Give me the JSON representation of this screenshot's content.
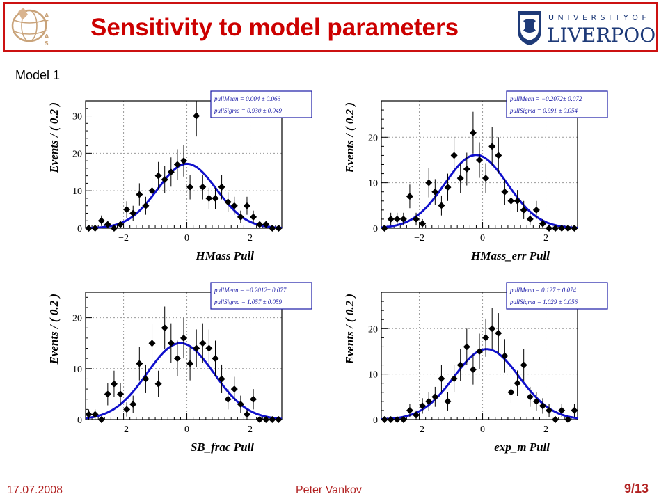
{
  "header": {
    "title": "Sensitivity to  model parameters",
    "atlas_logo_text": "ATLAS",
    "university_line1": "U N I V E R S I T Y   O F",
    "university_line2": "LIVERPOOL"
  },
  "model_label": "Model 1",
  "footer": {
    "date": "17.07.2008",
    "author": "Peter Vankov",
    "page": "9/13"
  },
  "colors": {
    "title": "#cc0000",
    "border": "#cc1111",
    "fit_curve": "#1010cc",
    "legend_text": "#1a1aa6",
    "footer": "#b22222"
  },
  "chart_data": [
    {
      "type": "scatter",
      "xlabel": "HMass Pull",
      "ylabel": "Events / ( 0.2 )",
      "xlim": [
        -3.2,
        3.0
      ],
      "ylim": [
        0,
        34
      ],
      "yticks": [
        0,
        10,
        20,
        30
      ],
      "xticks": [
        -2,
        0,
        2
      ],
      "legend": [
        "pullMean = 0.004 ± 0.066",
        "pullSigma = 0.930 ± 0.049"
      ],
      "fit": {
        "mean": 0.004,
        "sigma": 0.93,
        "amplitude": 17.2
      },
      "points": [
        {
          "x": -3.1,
          "y": 0,
          "err": 0
        },
        {
          "x": -2.9,
          "y": 0,
          "err": 0
        },
        {
          "x": -2.7,
          "y": 2,
          "err": 1.4
        },
        {
          "x": -2.5,
          "y": 1,
          "err": 1.0
        },
        {
          "x": -2.3,
          "y": 0,
          "err": 0
        },
        {
          "x": -2.1,
          "y": 1,
          "err": 1.0
        },
        {
          "x": -1.9,
          "y": 5,
          "err": 2.2
        },
        {
          "x": -1.7,
          "y": 4,
          "err": 2.0
        },
        {
          "x": -1.5,
          "y": 9,
          "err": 3.0
        },
        {
          "x": -1.3,
          "y": 6,
          "err": 2.4
        },
        {
          "x": -1.1,
          "y": 10,
          "err": 3.2
        },
        {
          "x": -0.9,
          "y": 14,
          "err": 3.7
        },
        {
          "x": -0.7,
          "y": 13,
          "err": 3.6
        },
        {
          "x": -0.5,
          "y": 15,
          "err": 3.9
        },
        {
          "x": -0.3,
          "y": 17,
          "err": 4.1
        },
        {
          "x": -0.1,
          "y": 18,
          "err": 4.2
        },
        {
          "x": 0.1,
          "y": 11,
          "err": 3.3
        },
        {
          "x": 0.3,
          "y": 30,
          "err": 5.5
        },
        {
          "x": 0.5,
          "y": 11,
          "err": 3.3
        },
        {
          "x": 0.7,
          "y": 8,
          "err": 2.8
        },
        {
          "x": 0.9,
          "y": 8,
          "err": 2.8
        },
        {
          "x": 1.1,
          "y": 11,
          "err": 3.3
        },
        {
          "x": 1.3,
          "y": 7,
          "err": 2.6
        },
        {
          "x": 1.5,
          "y": 6,
          "err": 2.4
        },
        {
          "x": 1.7,
          "y": 3,
          "err": 1.7
        },
        {
          "x": 1.9,
          "y": 6,
          "err": 2.4
        },
        {
          "x": 2.1,
          "y": 3,
          "err": 1.7
        },
        {
          "x": 2.3,
          "y": 1,
          "err": 1.0
        },
        {
          "x": 2.5,
          "y": 1,
          "err": 1.0
        },
        {
          "x": 2.7,
          "y": 0,
          "err": 0
        },
        {
          "x": 2.9,
          "y": 0,
          "err": 0
        }
      ]
    },
    {
      "type": "scatter",
      "xlabel": "HMass_err Pull",
      "ylabel": "Events / ( 0.2 )",
      "xlim": [
        -3.2,
        3.0
      ],
      "ylim": [
        0,
        28
      ],
      "yticks": [
        0,
        10,
        20
      ],
      "xticks": [
        -2,
        0,
        2
      ],
      "legend": [
        "pullMean = −0.2072± 0.072",
        "pullSigma = 0.991 ± 0.054"
      ],
      "fit": {
        "mean": -0.2072,
        "sigma": 0.991,
        "amplitude": 16.1
      },
      "points": [
        {
          "x": -3.1,
          "y": 0,
          "err": 0
        },
        {
          "x": -2.9,
          "y": 2,
          "err": 1.4
        },
        {
          "x": -2.7,
          "y": 2,
          "err": 1.4
        },
        {
          "x": -2.5,
          "y": 2,
          "err": 1.4
        },
        {
          "x": -2.3,
          "y": 7,
          "err": 2.6
        },
        {
          "x": -2.1,
          "y": 2,
          "err": 1.4
        },
        {
          "x": -1.9,
          "y": 1,
          "err": 1.0
        },
        {
          "x": -1.7,
          "y": 10,
          "err": 3.2
        },
        {
          "x": -1.5,
          "y": 8,
          "err": 2.8
        },
        {
          "x": -1.3,
          "y": 5,
          "err": 2.2
        },
        {
          "x": -1.1,
          "y": 9,
          "err": 3.0
        },
        {
          "x": -0.9,
          "y": 16,
          "err": 4.0
        },
        {
          "x": -0.7,
          "y": 11,
          "err": 3.3
        },
        {
          "x": -0.5,
          "y": 13,
          "err": 3.6
        },
        {
          "x": -0.3,
          "y": 21,
          "err": 4.6
        },
        {
          "x": -0.1,
          "y": 15,
          "err": 3.9
        },
        {
          "x": 0.1,
          "y": 11,
          "err": 3.3
        },
        {
          "x": 0.3,
          "y": 18,
          "err": 4.2
        },
        {
          "x": 0.5,
          "y": 16,
          "err": 4.0
        },
        {
          "x": 0.7,
          "y": 8,
          "err": 2.8
        },
        {
          "x": 0.9,
          "y": 6,
          "err": 2.4
        },
        {
          "x": 1.1,
          "y": 6,
          "err": 2.4
        },
        {
          "x": 1.3,
          "y": 4,
          "err": 2.0
        },
        {
          "x": 1.5,
          "y": 2,
          "err": 1.4
        },
        {
          "x": 1.7,
          "y": 4,
          "err": 2.0
        },
        {
          "x": 1.9,
          "y": 1,
          "err": 1.0
        },
        {
          "x": 2.1,
          "y": 0,
          "err": 0
        },
        {
          "x": 2.3,
          "y": 0,
          "err": 0
        },
        {
          "x": 2.5,
          "y": 0,
          "err": 0
        },
        {
          "x": 2.7,
          "y": 0,
          "err": 0
        },
        {
          "x": 2.9,
          "y": 0,
          "err": 0
        }
      ]
    },
    {
      "type": "scatter",
      "xlabel": "SB_frac Pull",
      "ylabel": "Events / ( 0.2 )",
      "xlim": [
        -3.2,
        3.0
      ],
      "ylim": [
        0,
        25
      ],
      "yticks": [
        0,
        10,
        20
      ],
      "xticks": [
        -2,
        0,
        2
      ],
      "legend": [
        "pullMean = −0.2012± 0.077",
        "pullSigma = 1.057 ± 0.059"
      ],
      "fit": {
        "mean": -0.2012,
        "sigma": 1.057,
        "amplitude": 15.0
      },
      "points": [
        {
          "x": -3.1,
          "y": 1,
          "err": 1.0
        },
        {
          "x": -2.9,
          "y": 1,
          "err": 1.0
        },
        {
          "x": -2.7,
          "y": 0,
          "err": 0
        },
        {
          "x": -2.5,
          "y": 5,
          "err": 2.2
        },
        {
          "x": -2.3,
          "y": 7,
          "err": 2.6
        },
        {
          "x": -2.1,
          "y": 5,
          "err": 2.2
        },
        {
          "x": -1.9,
          "y": 2,
          "err": 1.4
        },
        {
          "x": -1.7,
          "y": 3,
          "err": 1.7
        },
        {
          "x": -1.5,
          "y": 11,
          "err": 3.3
        },
        {
          "x": -1.3,
          "y": 8,
          "err": 2.8
        },
        {
          "x": -1.1,
          "y": 15,
          "err": 3.9
        },
        {
          "x": -0.9,
          "y": 7,
          "err": 2.6
        },
        {
          "x": -0.7,
          "y": 18,
          "err": 4.2
        },
        {
          "x": -0.5,
          "y": 15,
          "err": 3.9
        },
        {
          "x": -0.3,
          "y": 12,
          "err": 3.5
        },
        {
          "x": -0.1,
          "y": 16,
          "err": 4.0
        },
        {
          "x": 0.1,
          "y": 11,
          "err": 3.3
        },
        {
          "x": 0.3,
          "y": 14,
          "err": 3.7
        },
        {
          "x": 0.5,
          "y": 15,
          "err": 3.9
        },
        {
          "x": 0.7,
          "y": 14,
          "err": 3.7
        },
        {
          "x": 0.9,
          "y": 12,
          "err": 3.5
        },
        {
          "x": 1.1,
          "y": 8,
          "err": 2.8
        },
        {
          "x": 1.3,
          "y": 4,
          "err": 2.0
        },
        {
          "x": 1.5,
          "y": 6,
          "err": 2.4
        },
        {
          "x": 1.7,
          "y": 3,
          "err": 1.7
        },
        {
          "x": 1.9,
          "y": 1,
          "err": 1.0
        },
        {
          "x": 2.1,
          "y": 4,
          "err": 2.0
        },
        {
          "x": 2.3,
          "y": 0,
          "err": 0
        },
        {
          "x": 2.5,
          "y": 0,
          "err": 0
        },
        {
          "x": 2.7,
          "y": 0,
          "err": 0
        },
        {
          "x": 2.9,
          "y": 0,
          "err": 0
        }
      ]
    },
    {
      "type": "scatter",
      "xlabel": "exp_m Pull",
      "ylabel": "Events / ( 0.2 )",
      "xlim": [
        -3.2,
        3.0
      ],
      "ylim": [
        0,
        28
      ],
      "yticks": [
        0,
        10,
        20
      ],
      "xticks": [
        -2,
        0,
        2
      ],
      "legend": [
        "pullMean = 0.127 ± 0.074",
        "pullSigma = 1.029 ± 0.056"
      ],
      "fit": {
        "mean": 0.127,
        "sigma": 1.029,
        "amplitude": 15.5
      },
      "points": [
        {
          "x": -3.1,
          "y": 0,
          "err": 0
        },
        {
          "x": -2.9,
          "y": 0,
          "err": 0
        },
        {
          "x": -2.7,
          "y": 0,
          "err": 0
        },
        {
          "x": -2.5,
          "y": 0,
          "err": 0
        },
        {
          "x": -2.3,
          "y": 2,
          "err": 1.4
        },
        {
          "x": -2.1,
          "y": 1,
          "err": 1.0
        },
        {
          "x": -1.9,
          "y": 3,
          "err": 1.7
        },
        {
          "x": -1.7,
          "y": 4,
          "err": 2.0
        },
        {
          "x": -1.5,
          "y": 5,
          "err": 2.2
        },
        {
          "x": -1.3,
          "y": 9,
          "err": 3.0
        },
        {
          "x": -1.1,
          "y": 4,
          "err": 2.0
        },
        {
          "x": -0.9,
          "y": 9,
          "err": 3.0
        },
        {
          "x": -0.7,
          "y": 12,
          "err": 3.5
        },
        {
          "x": -0.5,
          "y": 16,
          "err": 4.0
        },
        {
          "x": -0.3,
          "y": 11,
          "err": 3.3
        },
        {
          "x": -0.1,
          "y": 15,
          "err": 3.9
        },
        {
          "x": 0.1,
          "y": 18,
          "err": 4.2
        },
        {
          "x": 0.3,
          "y": 20,
          "err": 4.5
        },
        {
          "x": 0.5,
          "y": 19,
          "err": 4.4
        },
        {
          "x": 0.7,
          "y": 14,
          "err": 3.7
        },
        {
          "x": 0.9,
          "y": 6,
          "err": 2.4
        },
        {
          "x": 1.1,
          "y": 8,
          "err": 2.8
        },
        {
          "x": 1.3,
          "y": 12,
          "err": 3.5
        },
        {
          "x": 1.5,
          "y": 5,
          "err": 2.2
        },
        {
          "x": 1.7,
          "y": 4,
          "err": 2.0
        },
        {
          "x": 1.9,
          "y": 3,
          "err": 1.7
        },
        {
          "x": 2.1,
          "y": 2,
          "err": 1.4
        },
        {
          "x": 2.3,
          "y": 0,
          "err": 0
        },
        {
          "x": 2.5,
          "y": 2,
          "err": 1.4
        },
        {
          "x": 2.7,
          "y": 0,
          "err": 0
        },
        {
          "x": 2.9,
          "y": 2,
          "err": 1.4
        }
      ]
    }
  ]
}
